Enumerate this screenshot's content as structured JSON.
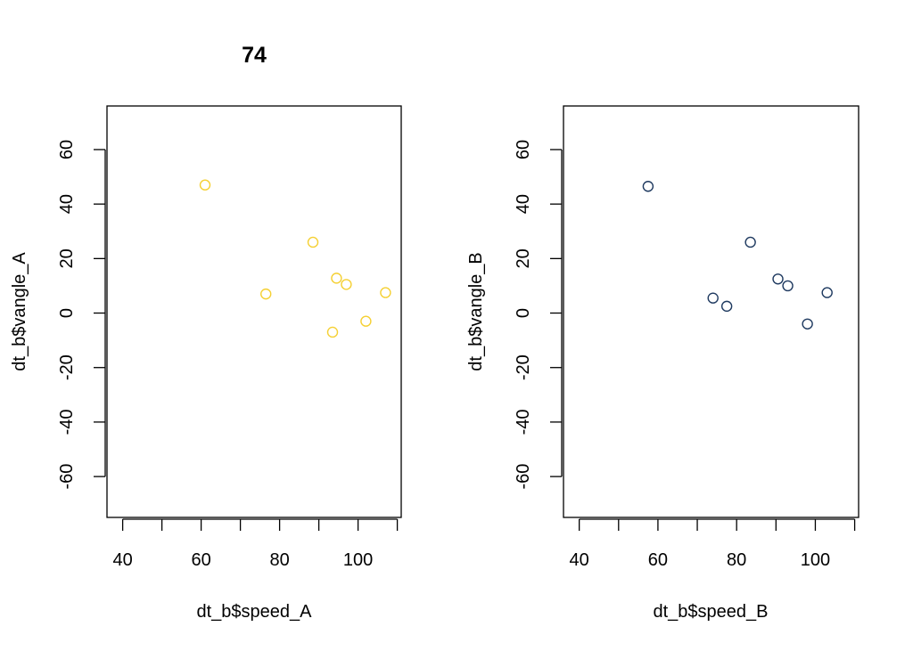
{
  "chart_data": [
    {
      "type": "scatter",
      "title": "74",
      "xlabel": "dt_b$speed_A",
      "ylabel": "dt_b$vangle_A",
      "xlim": [
        36,
        111
      ],
      "ylim": [
        -75,
        76
      ],
      "xticks": [
        40,
        50,
        60,
        70,
        80,
        90,
        100,
        110
      ],
      "xtick_labels": [
        "40",
        "",
        "60",
        "",
        "80",
        "",
        "100",
        ""
      ],
      "yticks": [
        -60,
        -40,
        -20,
        0,
        20,
        40,
        60
      ],
      "ytick_labels": [
        "-60",
        "-40",
        "-20",
        "0",
        "20",
        "40",
        "60"
      ],
      "grid": false,
      "color": "#F5D033",
      "x": [
        61,
        76.5,
        88.5,
        93.5,
        94.5,
        97,
        102,
        107
      ],
      "y": [
        47,
        7,
        26,
        -7,
        12.8,
        10.5,
        -3,
        7.5
      ]
    },
    {
      "type": "scatter",
      "title": "",
      "xlabel": "dt_b$speed_B",
      "ylabel": "dt_b$vangle_B",
      "xlim": [
        36,
        111
      ],
      "ylim": [
        -75,
        76
      ],
      "xticks": [
        40,
        50,
        60,
        70,
        80,
        90,
        100,
        110
      ],
      "xtick_labels": [
        "40",
        "",
        "60",
        "",
        "80",
        "",
        "100",
        ""
      ],
      "yticks": [
        -60,
        -40,
        -20,
        0,
        20,
        40,
        60
      ],
      "ytick_labels": [
        "-60",
        "-40",
        "-20",
        "0",
        "20",
        "40",
        "60"
      ],
      "grid": false,
      "color": "#1F3A60",
      "x": [
        57.5,
        74,
        77.5,
        83.5,
        90.5,
        93,
        98,
        103
      ],
      "y": [
        46.5,
        5.5,
        2.5,
        26,
        12.5,
        10,
        -4,
        7.5
      ]
    }
  ]
}
